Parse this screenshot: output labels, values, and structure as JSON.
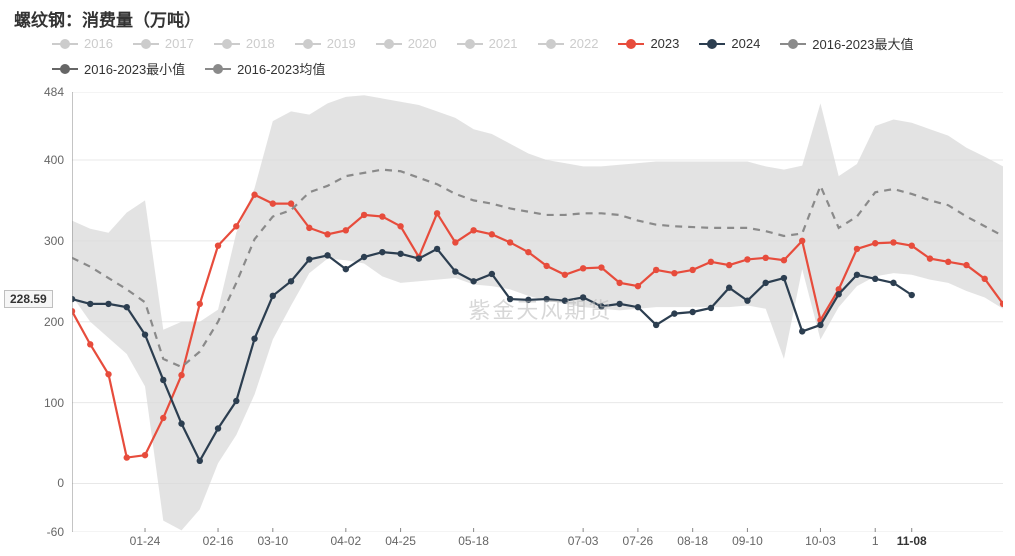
{
  "title": "螺纹钢：消费量（万吨）",
  "watermark": "紫金天风期货",
  "background_color": "#ffffff",
  "plot": {
    "ylim": [
      -60,
      484
    ],
    "yticks": [
      -60,
      0,
      100,
      200,
      300,
      400,
      484
    ],
    "ytick_labels": [
      "-60",
      "0",
      "100",
      "200",
      "300",
      "400",
      "484"
    ],
    "grid_color": "#e8e8e8",
    "axis_line_color": "#888888",
    "y_badge_value": "228.59",
    "y_badge_at": 228.59,
    "n_points": 52,
    "xticks": [
      {
        "idx": 4,
        "label": "01-24"
      },
      {
        "idx": 8,
        "label": "02-16"
      },
      {
        "idx": 11,
        "label": "03-10"
      },
      {
        "idx": 15,
        "label": "04-02"
      },
      {
        "idx": 18,
        "label": "04-25"
      },
      {
        "idx": 22,
        "label": "05-18"
      },
      {
        "idx": 28,
        "label": "07-03"
      },
      {
        "idx": 31,
        "label": "07-26"
      },
      {
        "idx": 34,
        "label": "08-18"
      },
      {
        "idx": 37,
        "label": "09-10"
      },
      {
        "idx": 41,
        "label": "10-03"
      },
      {
        "idx": 44,
        "label": "1"
      },
      {
        "idx": 46,
        "label": "11-08",
        "highlight": true
      }
    ],
    "band": {
      "fill": "#d9d9d9",
      "opacity": 0.75,
      "upper": [
        325,
        315,
        310,
        335,
        350,
        190,
        200,
        200,
        215,
        310,
        365,
        448,
        460,
        456,
        470,
        478,
        480,
        476,
        472,
        468,
        460,
        452,
        438,
        432,
        420,
        408,
        400,
        396,
        392,
        392,
        394,
        396,
        398,
        398,
        398,
        398,
        398,
        398,
        392,
        388,
        393,
        470,
        380,
        395,
        442,
        450,
        446,
        438,
        430,
        415,
        404,
        392
      ],
      "lower": [
        232,
        200,
        180,
        160,
        120,
        -46,
        -58,
        -32,
        25,
        60,
        110,
        178,
        220,
        260,
        278,
        276,
        272,
        256,
        248,
        250,
        252,
        254,
        246,
        244,
        240,
        232,
        226,
        222,
        218,
        216,
        214,
        216,
        218,
        218,
        218,
        218,
        218,
        220,
        216,
        154,
        265,
        178,
        218,
        244,
        256,
        260,
        258,
        252,
        248,
        238,
        230,
        216
      ]
    },
    "series": [
      {
        "name": "2023",
        "color": "#e74c3c",
        "width": 2.2,
        "marker_r": 3.2,
        "dash": null,
        "values": [
          213,
          172,
          135,
          32,
          35,
          81,
          134,
          222,
          294,
          318,
          357,
          346,
          346,
          316,
          308,
          313,
          332,
          330,
          318,
          280,
          334,
          298,
          313,
          308,
          298,
          286,
          269,
          258,
          266,
          267,
          248,
          244,
          264,
          260,
          264,
          274,
          270,
          277,
          279,
          276,
          300,
          202,
          240,
          290,
          297,
          298,
          294,
          278,
          274,
          270,
          253,
          222
        ]
      },
      {
        "name": "2024",
        "color": "#2c3e50",
        "width": 2.2,
        "marker_r": 3.2,
        "dash": null,
        "values": [
          228,
          222,
          222,
          218,
          184,
          128,
          74,
          28,
          68,
          102,
          179,
          232,
          250,
          277,
          282,
          265,
          280,
          286,
          284,
          278,
          290,
          262,
          250,
          259,
          228,
          227,
          228,
          226,
          230,
          219,
          222,
          218,
          196,
          210,
          212,
          217,
          242,
          226,
          248,
          254,
          188,
          196,
          234,
          258,
          253,
          248,
          233
        ]
      },
      {
        "name": "2016-2023均值",
        "color": "#8a8a8a",
        "width": 2.2,
        "marker_r": 0,
        "dash": "7 6",
        "values": [
          279,
          268,
          254,
          240,
          224,
          154,
          144,
          163,
          200,
          248,
          302,
          330,
          338,
          360,
          368,
          380,
          384,
          388,
          386,
          378,
          370,
          358,
          350,
          346,
          340,
          336,
          332,
          332,
          334,
          334,
          332,
          325,
          320,
          318,
          317,
          316,
          316,
          316,
          312,
          306,
          309,
          368,
          316,
          330,
          360,
          364,
          358,
          350,
          344,
          330,
          318,
          306
        ]
      }
    ]
  },
  "legend": {
    "inactive_color": "#cccccc",
    "text_active": "#333333",
    "text_inactive": "#cccccc",
    "items": [
      {
        "label": "2016",
        "active": false,
        "color": "#cccccc"
      },
      {
        "label": "2017",
        "active": false,
        "color": "#cccccc"
      },
      {
        "label": "2018",
        "active": false,
        "color": "#cccccc"
      },
      {
        "label": "2019",
        "active": false,
        "color": "#cccccc"
      },
      {
        "label": "2020",
        "active": false,
        "color": "#cccccc"
      },
      {
        "label": "2021",
        "active": false,
        "color": "#cccccc"
      },
      {
        "label": "2022",
        "active": false,
        "color": "#cccccc"
      },
      {
        "label": "2023",
        "active": true,
        "color": "#e74c3c"
      },
      {
        "label": "2024",
        "active": true,
        "color": "#2c3e50"
      },
      {
        "label": "2016-2023最大值",
        "active": true,
        "color": "#8a8a8a"
      },
      {
        "label": "2016-2023最小值",
        "active": true,
        "color": "#666666"
      },
      {
        "label": "2016-2023均值",
        "active": true,
        "color": "#8a8a8a"
      }
    ]
  }
}
